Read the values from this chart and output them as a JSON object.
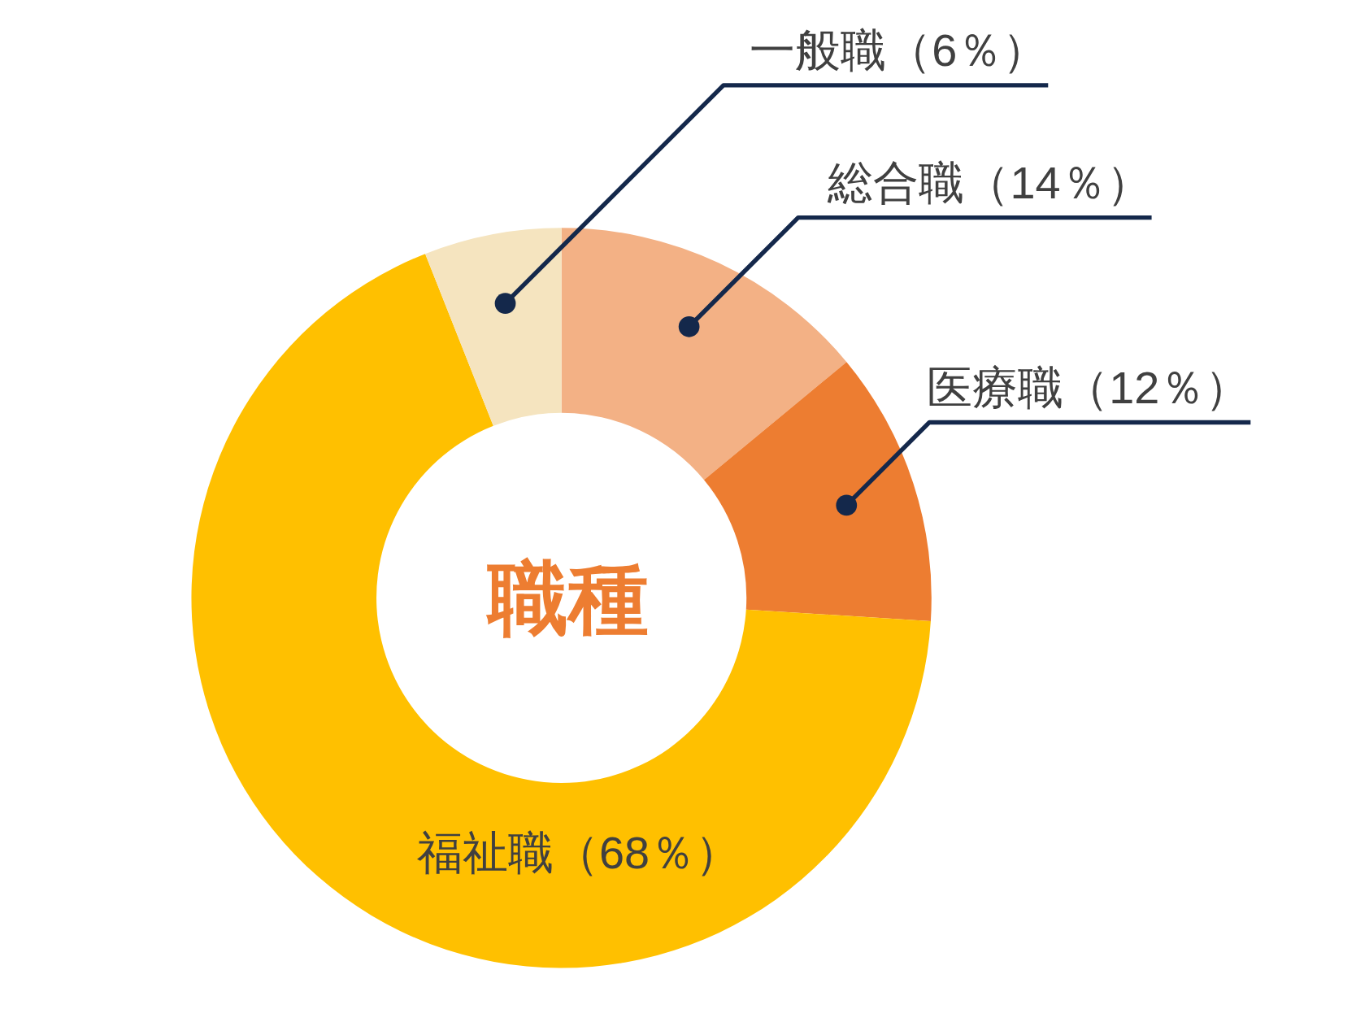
{
  "chart_data": {
    "type": "donut",
    "title": "職種",
    "categories": [
      "総合職",
      "医療職",
      "福祉職",
      "一般職"
    ],
    "values": [
      14,
      12,
      68,
      6
    ],
    "value_labels": [
      "（14％）",
      "（12％）",
      "（68％）",
      "（6％）"
    ],
    "colors": [
      "#f3b185",
      "#ed7d31",
      "#ffc000",
      "#f5e4bf"
    ]
  }
}
